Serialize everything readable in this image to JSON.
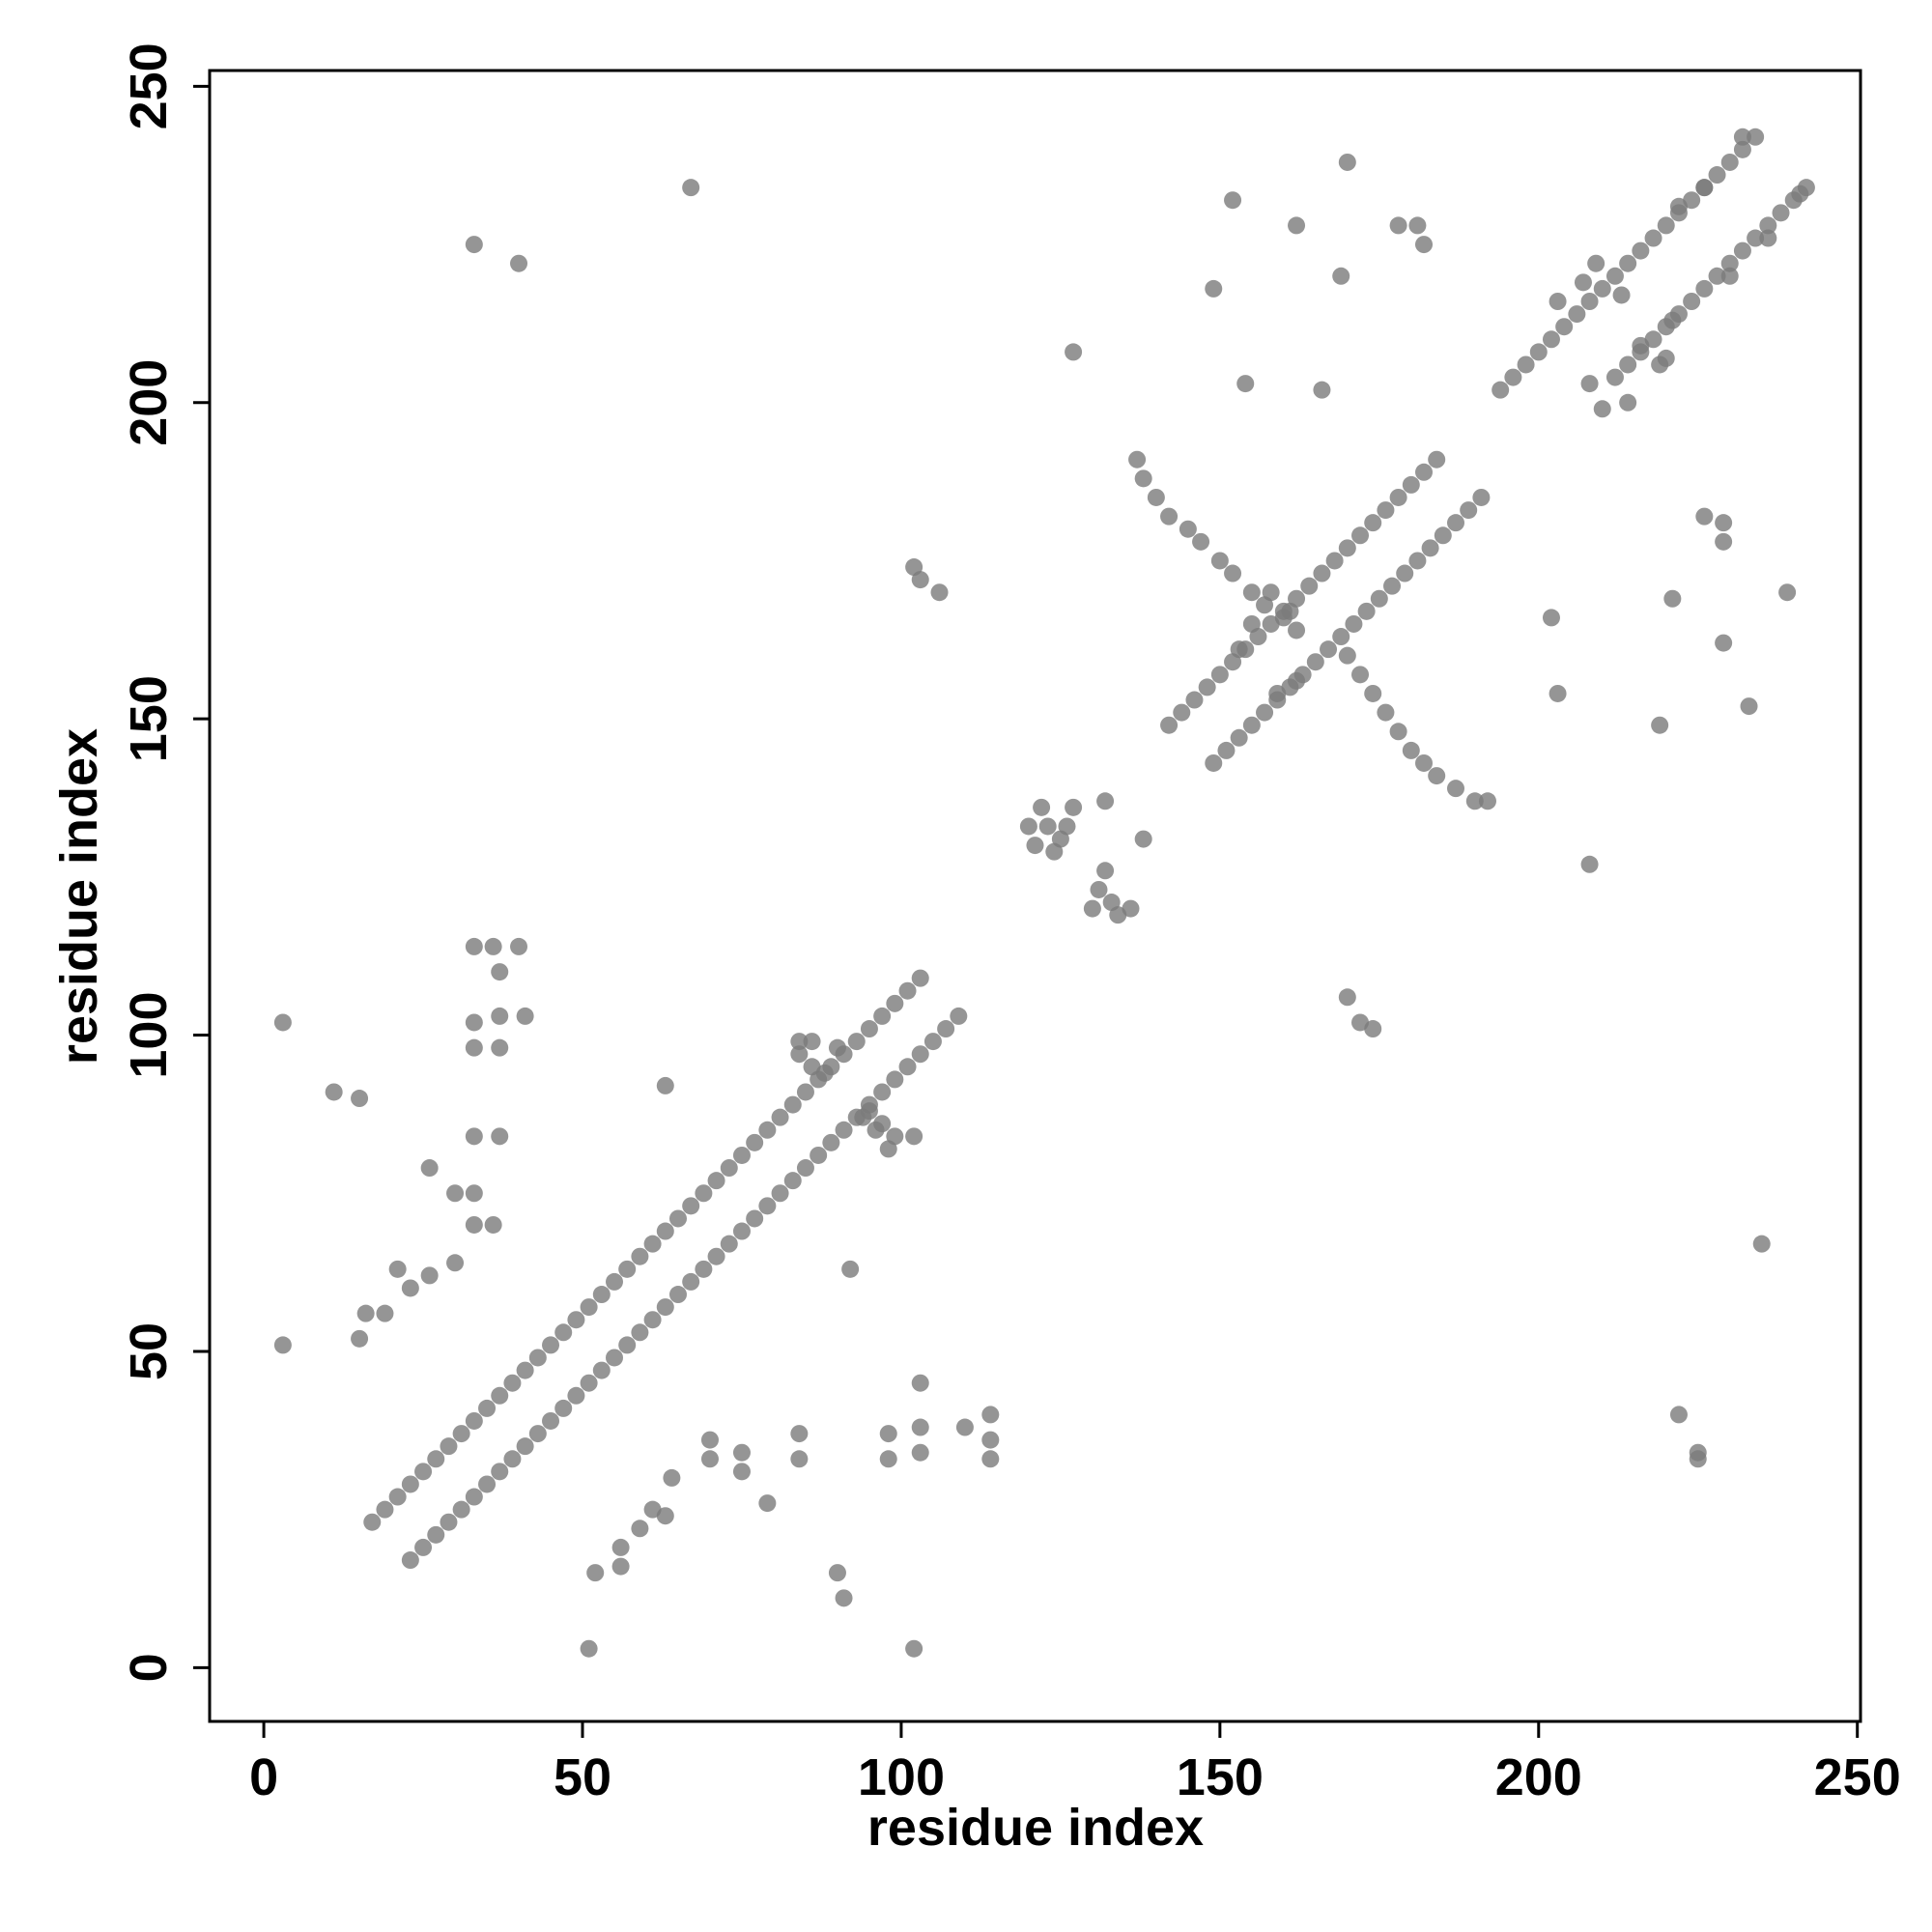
{
  "chart_data": {
    "type": "scatter",
    "xlabel": "residue index",
    "ylabel": "residue index",
    "color": "#7a7a7a",
    "xlim": [
      -8.5,
      250.5
    ],
    "ylim": [
      -8.5,
      252.5
    ],
    "xticks": [
      0,
      50,
      100,
      150,
      200,
      250
    ],
    "yticks": [
      0,
      50,
      100,
      150,
      200,
      250
    ],
    "x": [
      17,
      19,
      21,
      23,
      25,
      27,
      29,
      31,
      33,
      35,
      37,
      39,
      41,
      43,
      45,
      47,
      49,
      51,
      53,
      55,
      57,
      59,
      61,
      63,
      65,
      67,
      69,
      71,
      73,
      75,
      77,
      79,
      81,
      83,
      85,
      87,
      89,
      91,
      93,
      95,
      97,
      99,
      101,
      103,
      23,
      25,
      27,
      29,
      31,
      33,
      35,
      37,
      39,
      41,
      43,
      45,
      47,
      49,
      51,
      53,
      55,
      57,
      59,
      61,
      63,
      65,
      67,
      69,
      71,
      73,
      75,
      77,
      79,
      81,
      83,
      85,
      87,
      89,
      91,
      93,
      95,
      97,
      99,
      101,
      103,
      105,
      107,
      109,
      84,
      86,
      88,
      90,
      84,
      86,
      94,
      96,
      95,
      97,
      99,
      98,
      102,
      120,
      121,
      122,
      123,
      125,
      126,
      127,
      124,
      130,
      131,
      133,
      132,
      134,
      136,
      132,
      138,
      142,
      144,
      146,
      148,
      150,
      152,
      154,
      156,
      158,
      160,
      162,
      164,
      166,
      168,
      170,
      172,
      174,
      176,
      178,
      180,
      182,
      184,
      149,
      151,
      153,
      155,
      157,
      159,
      161,
      163,
      165,
      167,
      169,
      171,
      173,
      175,
      177,
      179,
      181,
      183,
      185,
      187,
      189,
      191,
      137,
      138,
      140,
      142,
      145,
      147,
      150,
      152,
      155,
      157,
      160,
      162,
      170,
      172,
      174,
      176,
      178,
      180,
      182,
      184,
      187,
      190,
      192,
      153,
      155,
      158,
      161,
      159,
      162,
      194,
      196,
      198,
      200,
      202,
      204,
      206,
      208,
      210,
      212,
      214,
      216,
      218,
      220,
      222,
      224,
      226,
      228,
      230,
      232,
      234,
      212,
      214,
      216,
      218,
      220,
      222,
      224,
      226,
      228,
      230,
      232,
      234,
      236,
      238,
      240,
      242,
      203,
      207,
      209,
      213,
      222,
      226,
      232,
      216,
      219,
      221,
      230,
      236,
      241,
      208,
      210,
      214,
      220,
      3,
      11,
      15,
      3,
      15,
      16,
      19,
      21,
      23,
      26,
      30,
      30,
      33,
      33,
      36,
      26,
      33,
      37,
      33,
      37,
      33,
      37,
      41,
      36,
      40,
      33,
      37,
      33,
      40,
      67,
      63,
      92,
      51,
      52,
      56,
      56,
      59,
      61,
      63,
      64,
      70,
      70,
      75,
      75,
      79,
      84,
      84,
      90,
      91,
      98,
      98,
      102,
      103,
      103,
      103,
      110,
      114,
      114,
      114,
      102,
      103,
      106,
      127,
      149,
      152,
      154,
      162,
      166,
      169,
      170,
      178,
      181,
      182,
      170,
      172,
      174,
      202,
      203,
      208,
      219,
      221,
      226,
      229,
      229,
      229,
      233,
      239,
      235,
      222,
      225,
      225
    ],
    "y": [
      23,
      25,
      27,
      29,
      31,
      33,
      35,
      37,
      39,
      41,
      43,
      45,
      47,
      49,
      51,
      53,
      55,
      57,
      59,
      61,
      63,
      65,
      67,
      69,
      71,
      73,
      75,
      77,
      79,
      81,
      83,
      85,
      87,
      89,
      91,
      93,
      95,
      97,
      99,
      101,
      103,
      105,
      107,
      109,
      17,
      19,
      21,
      23,
      25,
      27,
      29,
      31,
      33,
      35,
      37,
      39,
      41,
      43,
      45,
      47,
      49,
      51,
      53,
      55,
      57,
      59,
      61,
      63,
      65,
      67,
      69,
      71,
      73,
      75,
      77,
      79,
      81,
      83,
      85,
      87,
      89,
      91,
      93,
      95,
      97,
      99,
      101,
      103,
      97,
      95,
      94,
      98,
      99,
      99,
      87,
      85,
      88,
      86,
      84,
      82,
      84,
      133,
      130,
      136,
      133,
      131,
      133,
      136,
      129,
      120,
      123,
      121,
      126,
      119,
      120,
      137,
      131,
      149,
      151,
      153,
      155,
      157,
      159,
      161,
      163,
      165,
      167,
      169,
      171,
      173,
      175,
      177,
      179,
      181,
      183,
      185,
      187,
      189,
      191,
      143,
      145,
      147,
      149,
      151,
      153,
      155,
      157,
      159,
      161,
      163,
      165,
      167,
      169,
      171,
      173,
      175,
      177,
      179,
      181,
      183,
      185,
      191,
      188,
      185,
      182,
      180,
      178,
      175,
      173,
      170,
      168,
      166,
      164,
      160,
      157,
      154,
      151,
      148,
      145,
      143,
      141,
      139,
      137,
      137,
      161,
      165,
      170,
      167,
      154,
      156,
      202,
      204,
      206,
      208,
      210,
      212,
      214,
      216,
      218,
      220,
      222,
      224,
      226,
      228,
      230,
      232,
      234,
      236,
      238,
      240,
      242,
      204,
      206,
      208,
      210,
      212,
      214,
      216,
      218,
      220,
      222,
      224,
      226,
      228,
      230,
      232,
      234,
      216,
      219,
      222,
      217,
      231,
      234,
      242,
      209,
      206,
      213,
      220,
      226,
      233,
      203,
      199,
      200,
      207,
      102,
      91,
      90,
      51,
      52,
      56,
      56,
      63,
      60,
      62,
      64,
      75,
      75,
      70,
      70,
      79,
      84,
      84,
      98,
      98,
      102,
      103,
      103,
      114,
      114,
      114,
      110,
      225,
      222,
      234,
      92,
      63,
      3,
      15,
      19,
      16,
      22,
      25,
      24,
      30,
      36,
      33,
      34,
      31,
      26,
      37,
      33,
      15,
      11,
      37,
      33,
      3,
      45,
      38,
      34,
      38,
      40,
      36,
      33,
      174,
      172,
      170,
      208,
      218,
      232,
      203,
      228,
      202,
      220,
      238,
      228,
      228,
      225,
      106,
      102,
      101,
      166,
      154,
      127,
      149,
      169,
      182,
      181,
      178,
      162,
      152,
      170,
      67,
      40,
      34,
      33
    ]
  }
}
